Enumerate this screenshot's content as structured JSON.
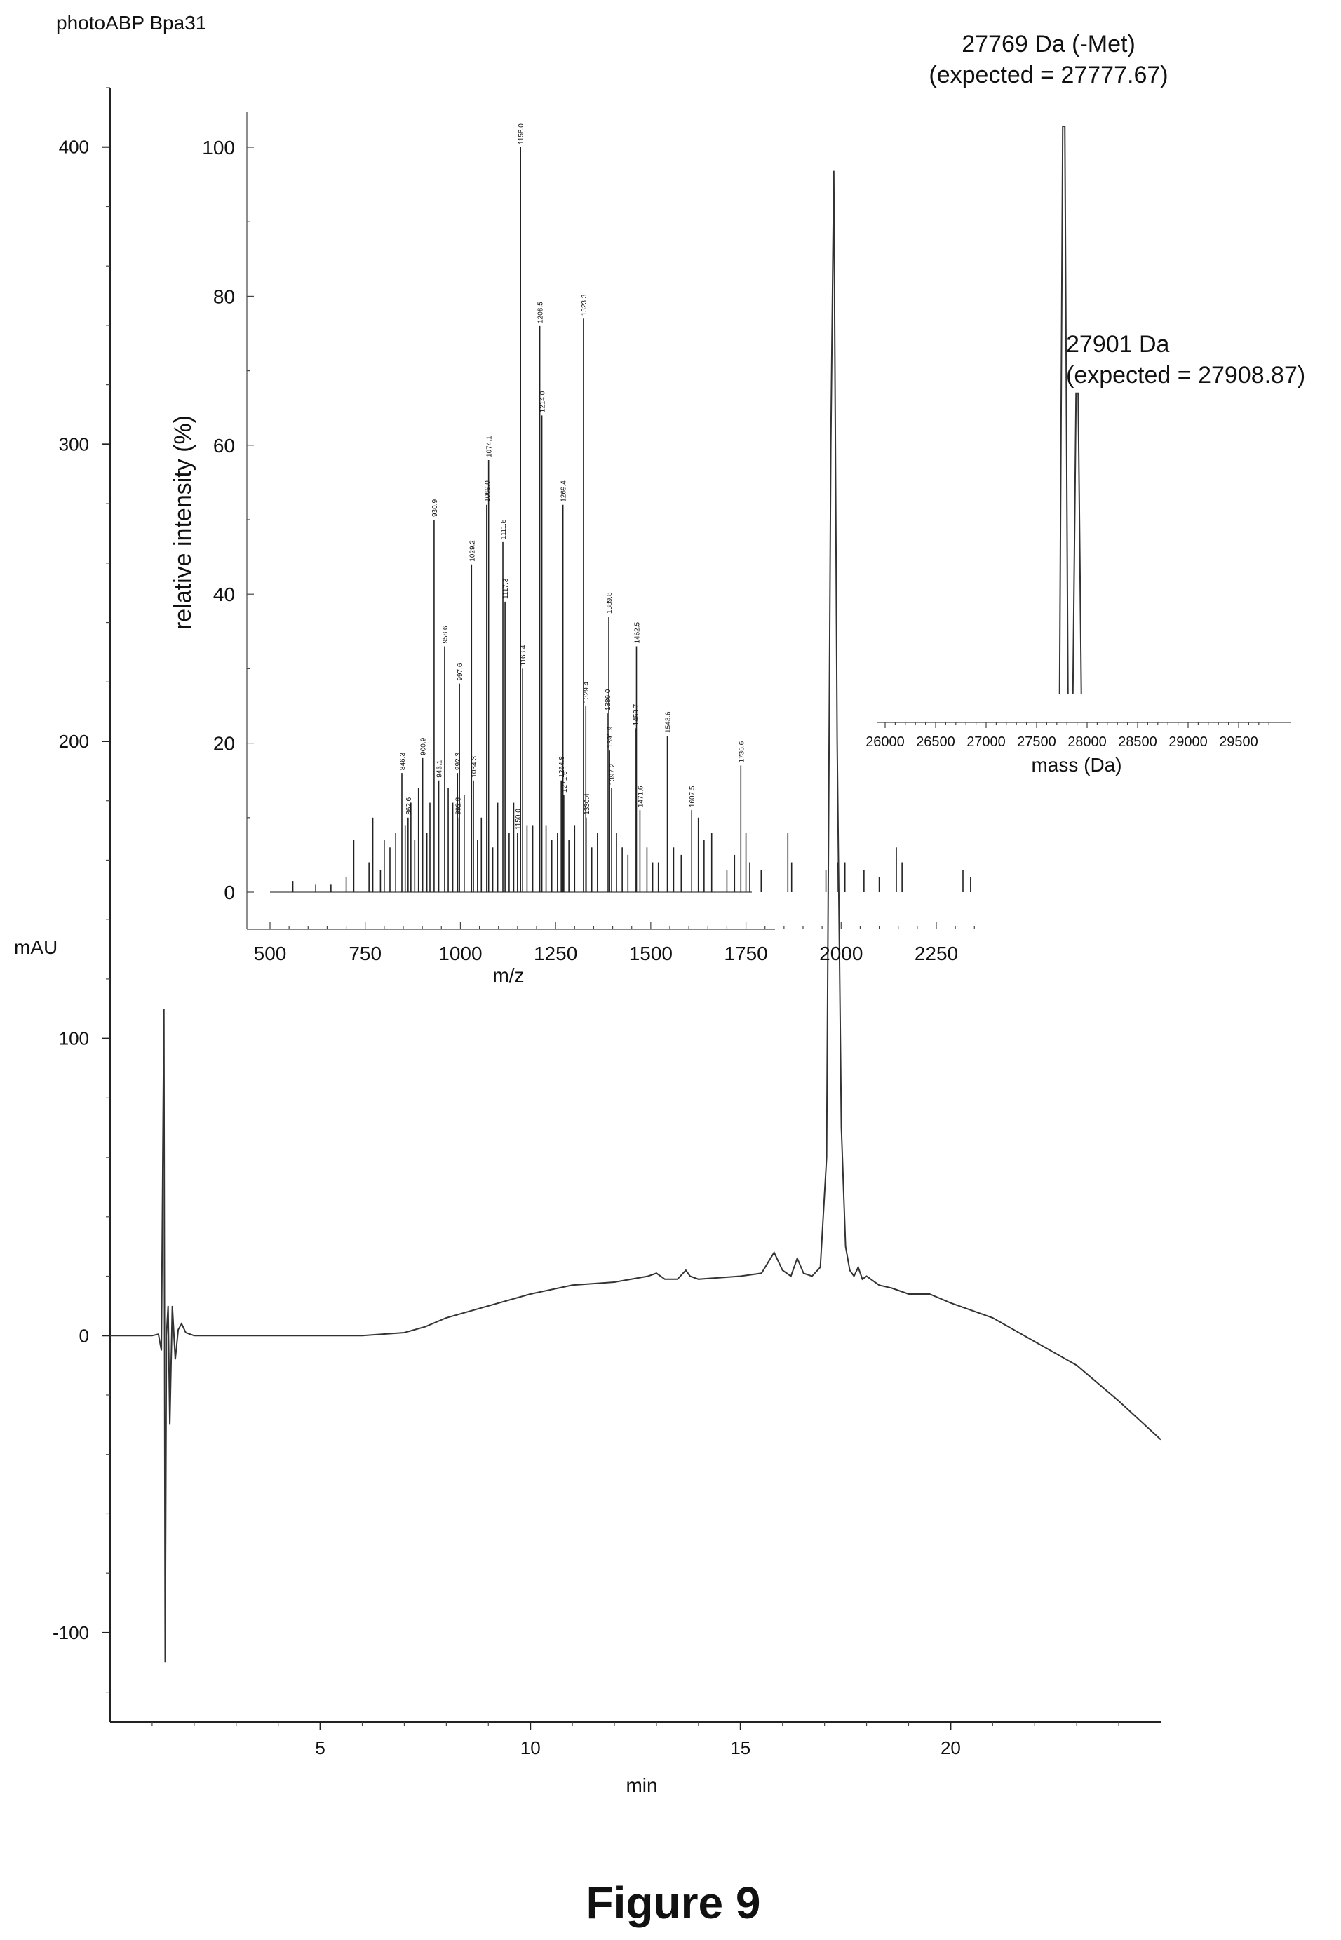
{
  "chart_data": [
    {
      "type": "line",
      "id": "chromatogram",
      "title": "photoABP Bpa31",
      "xlabel": "min",
      "ylabel": "mAU",
      "xlim": [
        0,
        25
      ],
      "ylim": [
        -130,
        420
      ],
      "x_ticks": [
        5,
        10,
        15,
        20
      ],
      "y_ticks": [
        -100,
        0,
        100,
        200,
        300,
        400
      ],
      "grid": false,
      "series": [
        {
          "x": [
            0,
            0.5,
            1.0,
            1.15,
            1.22,
            1.28,
            1.31,
            1.34,
            1.38,
            1.42,
            1.48,
            1.55,
            1.62,
            1.7,
            1.8,
            2.0,
            2.3,
            3.0,
            4.0,
            5.0,
            6.0,
            7.0,
            7.5,
            8.0,
            9.0,
            10.0,
            11.0,
            12.0,
            12.8,
            13.0,
            13.2,
            13.5,
            13.7,
            13.8,
            14.0,
            15.0,
            15.5,
            15.8,
            16.0,
            16.2,
            16.35,
            16.5,
            16.7,
            16.9,
            17.05,
            17.15,
            17.22,
            17.3,
            17.4,
            17.5,
            17.6,
            17.7,
            17.8,
            17.9,
            18.0,
            18.3,
            18.6,
            19.0,
            19.5,
            20.0,
            21.0,
            22.0,
            23.0,
            24.0,
            25.0
          ],
          "y": [
            0,
            0,
            0,
            0.5,
            -5,
            110,
            -110,
            0,
            10,
            -30,
            10,
            -8,
            2,
            4,
            1,
            0,
            0,
            0,
            0,
            0,
            0,
            1,
            3,
            6,
            10,
            14,
            17,
            18,
            20,
            21,
            19,
            19,
            22,
            20,
            19,
            20,
            21,
            28,
            22,
            20,
            26,
            21,
            20,
            23,
            60,
            300,
            392,
            200,
            70,
            30,
            22,
            20,
            23,
            19,
            20,
            17,
            16,
            14,
            14,
            11,
            6,
            -2,
            -10,
            -22,
            -35
          ]
        }
      ]
    },
    {
      "type": "bar",
      "id": "ms-spectrum",
      "xlabel": "m/z",
      "ylabel": "relative intensity (%)",
      "xlim": [
        500,
        2400
      ],
      "ylim": [
        0,
        105
      ],
      "x_ticks": [
        500,
        750,
        1000,
        1250,
        1500,
        1750,
        2000,
        2250
      ],
      "y_ticks": [
        0,
        20,
        40,
        60,
        80,
        100
      ],
      "labeled_peaks": [
        {
          "mz": 846.3,
          "label": "846.3",
          "y": 16
        },
        {
          "mz": 862.6,
          "label": "862.6",
          "y": 10
        },
        {
          "mz": 900.9,
          "label": "900.9",
          "y": 18
        },
        {
          "mz": 930.9,
          "label": "930.9",
          "y": 50
        },
        {
          "mz": 943.1,
          "label": "943.1",
          "y": 15
        },
        {
          "mz": 958.6,
          "label": "958.6",
          "y": 33
        },
        {
          "mz": 992.8,
          "label": "992.8",
          "y": 10
        },
        {
          "mz": 992.3,
          "label": "992.3",
          "y": 16
        },
        {
          "mz": 997.6,
          "label": "997.6",
          "y": 28
        },
        {
          "mz": 1029.2,
          "label": "1029.2",
          "y": 44
        },
        {
          "mz": 1034.3,
          "label": "1034.3",
          "y": 15
        },
        {
          "mz": 1069.0,
          "label": "1069.0",
          "y": 52
        },
        {
          "mz": 1074.1,
          "label": "1074.1",
          "y": 58
        },
        {
          "mz": 1111.6,
          "label": "1111.6",
          "y": 47
        },
        {
          "mz": 1117.3,
          "label": "1117.3",
          "y": 39
        },
        {
          "mz": 1150.0,
          "label": "1150.0",
          "y": 8
        },
        {
          "mz": 1158.0,
          "label": "1158.0",
          "y": 100
        },
        {
          "mz": 1163.4,
          "label": "1163.4",
          "y": 30
        },
        {
          "mz": 1208.5,
          "label": "1208.5",
          "y": 76
        },
        {
          "mz": 1214.0,
          "label": "1214.0",
          "y": 64
        },
        {
          "mz": 1264.8,
          "label": "1264.8",
          "y": 15
        },
        {
          "mz": 1269.4,
          "label": "1269.4",
          "y": 52
        },
        {
          "mz": 1271.6,
          "label": "1271.6",
          "y": 13
        },
        {
          "mz": 1323.3,
          "label": "1323.3",
          "y": 77
        },
        {
          "mz": 1329.4,
          "label": "1329.4",
          "y": 25
        },
        {
          "mz": 1330.4,
          "label": "1330.4",
          "y": 10
        },
        {
          "mz": 1386.0,
          "label": "1386.0",
          "y": 24
        },
        {
          "mz": 1389.8,
          "label": "1389.8",
          "y": 37
        },
        {
          "mz": 1391.9,
          "label": "1391.9",
          "y": 19
        },
        {
          "mz": 1397.2,
          "label": "1397.2",
          "y": 14
        },
        {
          "mz": 1462.5,
          "label": "1462.5",
          "y": 33
        },
        {
          "mz": 1459.7,
          "label": "1459.7",
          "y": 22
        },
        {
          "mz": 1471.6,
          "label": "1471.6",
          "y": 11
        },
        {
          "mz": 1543.6,
          "label": "1543.6",
          "y": 21
        },
        {
          "mz": 1607.5,
          "label": "1607.5",
          "y": 11
        },
        {
          "mz": 1736.6,
          "label": "1736.6",
          "y": 17
        }
      ],
      "minor_peaks": [
        [
          560,
          1.5
        ],
        [
          620,
          1
        ],
        [
          660,
          1
        ],
        [
          700,
          2
        ],
        [
          720,
          7
        ],
        [
          760,
          4
        ],
        [
          770,
          10
        ],
        [
          790,
          3
        ],
        [
          800,
          7
        ],
        [
          815,
          6
        ],
        [
          830,
          8
        ],
        [
          855,
          9
        ],
        [
          870,
          12
        ],
        [
          880,
          7
        ],
        [
          890,
          14
        ],
        [
          912,
          8
        ],
        [
          920,
          12
        ],
        [
          968,
          14
        ],
        [
          980,
          12
        ],
        [
          1010,
          13
        ],
        [
          1045,
          7
        ],
        [
          1055,
          10
        ],
        [
          1085,
          6
        ],
        [
          1098,
          12
        ],
        [
          1128,
          8
        ],
        [
          1140,
          12
        ],
        [
          1175,
          9
        ],
        [
          1190,
          9
        ],
        [
          1225,
          9
        ],
        [
          1240,
          7
        ],
        [
          1255,
          8
        ],
        [
          1285,
          7
        ],
        [
          1300,
          9
        ],
        [
          1345,
          6
        ],
        [
          1360,
          8
        ],
        [
          1410,
          8
        ],
        [
          1425,
          6
        ],
        [
          1440,
          5
        ],
        [
          1490,
          6
        ],
        [
          1505,
          4
        ],
        [
          1520,
          4
        ],
        [
          1560,
          6
        ],
        [
          1580,
          5
        ],
        [
          1625,
          10
        ],
        [
          1640,
          7
        ],
        [
          1660,
          8
        ],
        [
          1700,
          3
        ],
        [
          1720,
          5
        ],
        [
          1750,
          8
        ],
        [
          1760,
          4
        ],
        [
          1790,
          3
        ],
        [
          1860,
          8
        ],
        [
          1870,
          4
        ],
        [
          1960,
          3
        ],
        [
          1990,
          4
        ],
        [
          2010,
          4
        ],
        [
          2060,
          3
        ],
        [
          2100,
          2
        ],
        [
          2145,
          6
        ],
        [
          2160,
          4
        ],
        [
          2320,
          3
        ],
        [
          2340,
          2
        ]
      ]
    },
    {
      "type": "line",
      "id": "deconvoluted-mass",
      "xlabel": "mass (Da)",
      "xlim": [
        25900,
        29900
      ],
      "x_ticks": [
        26000,
        26500,
        27000,
        27500,
        28000,
        28500,
        29000,
        29500
      ],
      "peaks": [
        {
          "mass": 27769,
          "relative_intensity": 100,
          "label_line1": "27769 Da (-Met)",
          "label_line2": "(expected = 27777.67)"
        },
        {
          "mass": 27901,
          "relative_intensity": 53,
          "label_line1": "27901 Da",
          "label_line2": "(expected = 27908.87)"
        }
      ]
    }
  ],
  "figure_caption": "Figure 9"
}
